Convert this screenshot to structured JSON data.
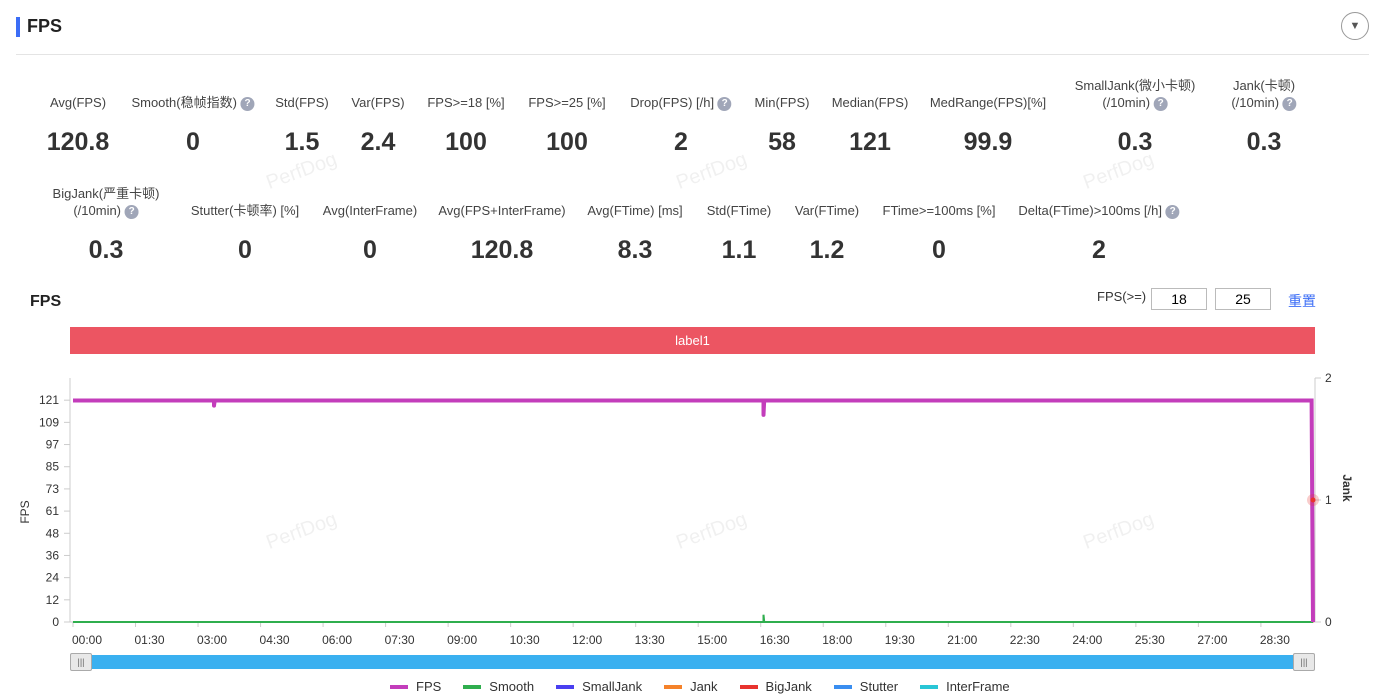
{
  "header": {
    "title": "FPS",
    "collapse_icon": "chevron-down-icon"
  },
  "metrics_row1": [
    {
      "label": "Avg(FPS)",
      "value": "120.8",
      "help": false,
      "x": 78
    },
    {
      "label": "Smooth(稳帧指数)",
      "value": "0",
      "help": true,
      "x": 193
    },
    {
      "label": "Std(FPS)",
      "value": "1.5",
      "help": false,
      "x": 302
    },
    {
      "label": "Var(FPS)",
      "value": "2.4",
      "help": false,
      "x": 378
    },
    {
      "label": "FPS>=18 [%]",
      "value": "100",
      "help": false,
      "x": 466
    },
    {
      "label": "FPS>=25 [%]",
      "value": "100",
      "help": false,
      "x": 567
    },
    {
      "label": "Drop(FPS) [/h]",
      "value": "2",
      "help": true,
      "x": 681
    },
    {
      "label": "Min(FPS)",
      "value": "58",
      "help": false,
      "x": 782
    },
    {
      "label": "Median(FPS)",
      "value": "121",
      "help": false,
      "x": 870
    },
    {
      "label": "MedRange(FPS)[%]",
      "value": "99.9",
      "help": false,
      "x": 988
    },
    {
      "label": "SmallJank(微小卡顿)",
      "label2": "(/10min)",
      "value": "0.3",
      "help": true,
      "x": 1135
    },
    {
      "label": "Jank(卡顿)",
      "label2": "(/10min)",
      "value": "0.3",
      "help": true,
      "x": 1264
    }
  ],
  "metrics_row2": [
    {
      "label": "BigJank(严重卡顿)",
      "label2": "(/10min)",
      "value": "0.3",
      "help": true,
      "x": 106
    },
    {
      "label": "Stutter(卡顿率) [%]",
      "value": "0",
      "help": false,
      "x": 245
    },
    {
      "label": "Avg(InterFrame)",
      "value": "0",
      "help": false,
      "x": 370
    },
    {
      "label": "Avg(FPS+InterFrame)",
      "value": "120.8",
      "help": false,
      "x": 502
    },
    {
      "label": "Avg(FTime) [ms]",
      "value": "8.3",
      "help": false,
      "x": 635
    },
    {
      "label": "Std(FTime)",
      "value": "1.1",
      "help": false,
      "x": 739
    },
    {
      "label": "Var(FTime)",
      "value": "1.2",
      "help": false,
      "x": 827
    },
    {
      "label": "FTime>=100ms [%]",
      "value": "0",
      "help": false,
      "x": 939
    },
    {
      "label": "Delta(FTime)>100ms [/h]",
      "value": "2",
      "help": true,
      "x": 1099
    }
  ],
  "watermark": "PerfDog",
  "chart_section": {
    "title": "FPS",
    "threshold_label": "FPS(>=)",
    "threshold1": "18",
    "threshold2": "25",
    "reset_label": "重置",
    "label_band": "label1"
  },
  "chart_data": {
    "type": "line",
    "ylabel": "FPS",
    "y2label": "Jank",
    "ylim": [
      0,
      133.1
    ],
    "y2lim": [
      0,
      2
    ],
    "yticks": [
      "0",
      "12",
      "24",
      "36",
      "48",
      "61",
      "73",
      "85",
      "97",
      "109",
      "121"
    ],
    "y2ticks": [
      "0",
      "1",
      "2"
    ],
    "xticks": [
      "00:00",
      "01:30",
      "03:00",
      "04:30",
      "06:00",
      "07:30",
      "09:00",
      "10:30",
      "12:00",
      "13:30",
      "15:00",
      "16:30",
      "18:00",
      "19:30",
      "21:00",
      "22:30",
      "24:00",
      "25:30",
      "27:00",
      "28:30"
    ],
    "xlim_seconds": [
      0,
      1785
    ],
    "series": [
      {
        "name": "FPS",
        "color": "#c33dbb",
        "points": [
          [
            0,
            120.8
          ],
          [
            203,
            120.8
          ],
          [
            203,
            118
          ],
          [
            204,
            120.8
          ],
          [
            994,
            120.8
          ],
          [
            994,
            113
          ],
          [
            995,
            120.8
          ],
          [
            1783,
            120.8
          ],
          [
            1784,
            58
          ],
          [
            1785,
            0
          ]
        ]
      },
      {
        "name": "Smooth",
        "color": "#2fae4e",
        "points": [
          [
            0,
            0
          ],
          [
            994,
            0
          ],
          [
            994,
            4
          ],
          [
            995,
            0
          ],
          [
            1785,
            0
          ]
        ]
      },
      {
        "name": "SmallJank",
        "color": "#4a3ff0",
        "points": [
          [
            0,
            0
          ],
          [
            1785,
            0
          ]
        ]
      },
      {
        "name": "Jank",
        "color": "#f5822a",
        "axis": "right",
        "points": [
          [
            0,
            0
          ],
          [
            1784,
            0
          ],
          [
            1785,
            1
          ]
        ]
      },
      {
        "name": "BigJank",
        "color": "#e8332e",
        "axis": "right",
        "points": [
          [
            0,
            0
          ],
          [
            1784,
            0
          ],
          [
            1785,
            1
          ]
        ]
      },
      {
        "name": "Stutter",
        "color": "#3a8ef0",
        "points": [
          [
            0,
            0
          ],
          [
            1785,
            0
          ]
        ]
      },
      {
        "name": "InterFrame",
        "color": "#29c6d6",
        "points": [
          [
            0,
            0
          ],
          [
            1785,
            0
          ]
        ]
      }
    ]
  }
}
